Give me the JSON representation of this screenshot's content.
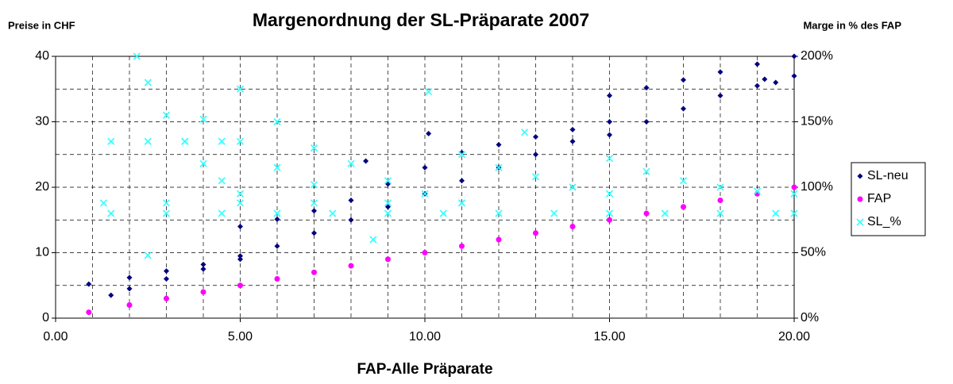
{
  "chart_data": {
    "type": "scatter",
    "title": "Margenordnung der SL-Präparate 2007",
    "y_label": "Preise in CHF",
    "y2_label": "Marge in % des FAP",
    "x_label": "FAP-Alle Präparate",
    "xlim": [
      0,
      20
    ],
    "xticks": [
      {
        "value": 0,
        "label": "0.00"
      },
      {
        "value": 5,
        "label": "5.00"
      },
      {
        "value": 10,
        "label": "10.00"
      },
      {
        "value": 15,
        "label": "15.00"
      },
      {
        "value": 20,
        "label": "20.00"
      }
    ],
    "ylim": [
      0,
      40
    ],
    "yticks": [
      0,
      10,
      20,
      30,
      40
    ],
    "y2lim": [
      0,
      200
    ],
    "y2ticks": [
      {
        "value": 0,
        "label": "0%"
      },
      {
        "value": 50,
        "label": "50%"
      },
      {
        "value": 100,
        "label": "100%"
      },
      {
        "value": 150,
        "label": "150%"
      },
      {
        "value": 200,
        "label": "200%"
      }
    ],
    "xgrid": [
      1,
      2,
      3,
      4,
      5,
      6,
      7,
      8,
      9,
      10,
      11,
      12,
      13,
      14,
      15,
      16,
      17,
      18,
      19
    ],
    "ygrid": [
      5,
      10,
      15,
      20,
      25,
      30,
      35
    ],
    "grid": true,
    "legend": "right",
    "series": [
      {
        "name": "SL-neu",
        "color": "#000080",
        "marker": "diamond",
        "x": [
          0.9,
          2,
          3,
          4,
          5,
          5,
          6,
          7,
          8,
          9,
          10,
          11,
          12,
          13,
          14,
          15,
          15,
          16,
          17,
          18,
          19,
          20,
          1.5,
          2,
          3,
          4,
          5,
          6,
          7,
          8,
          9,
          10,
          11,
          12,
          13,
          14,
          15,
          16,
          17,
          18,
          19,
          19.5,
          20,
          10.1,
          8.4,
          19.2
        ],
        "values": [
          5.2,
          6.2,
          7.2,
          8.2,
          9.5,
          14,
          15.1,
          16.4,
          18,
          20.5,
          23,
          25.3,
          26.5,
          27.7,
          28.8,
          30,
          34,
          35.2,
          36.4,
          37.6,
          38.8,
          40,
          3.5,
          4.5,
          6,
          7.5,
          9,
          11,
          13,
          15,
          17,
          19,
          21,
          23,
          25,
          27,
          28,
          30,
          32,
          34,
          35.5,
          36,
          37,
          28.2,
          24,
          36.5
        ]
      },
      {
        "name": "FAP",
        "color": "#ff00ff",
        "marker": "circle",
        "x": [
          0.9,
          2,
          3,
          4,
          5,
          6,
          7,
          8,
          9,
          10,
          11,
          12,
          13,
          14,
          15,
          16,
          17,
          18,
          19,
          20
        ],
        "values": [
          0.9,
          2,
          3,
          4,
          5,
          6,
          7,
          8,
          9,
          10,
          11,
          12,
          13,
          14,
          15,
          16,
          17,
          18,
          19,
          20
        ]
      },
      {
        "name": "SL_%",
        "color": "#33ffff",
        "marker": "x",
        "axis": "y2",
        "x": [
          2.2,
          2.5,
          3,
          3.5,
          4,
          4.5,
          5,
          5,
          6,
          7,
          8,
          9,
          10,
          11,
          1.5,
          2.5,
          3.5,
          4.5,
          5,
          6,
          7,
          11,
          12,
          13,
          14,
          15,
          15,
          16,
          17,
          18,
          19,
          20,
          1.3,
          3,
          5,
          7,
          9,
          11,
          1.5,
          3,
          4.5,
          6,
          7.5,
          9,
          10.5,
          12,
          13.5,
          15,
          16.5,
          18,
          19.5,
          20,
          10.1,
          4,
          2.5,
          8.6,
          12.7
        ],
        "values": [
          200,
          180,
          155,
          135,
          118,
          105,
          95,
          175,
          150,
          130,
          118,
          105,
          95,
          88,
          135,
          135,
          135,
          135,
          135,
          115,
          102,
          125,
          115,
          108,
          100,
          95,
          122,
          112,
          105,
          100,
          97,
          95,
          88,
          88,
          88,
          88,
          88,
          88,
          80,
          80,
          80,
          80,
          80,
          80,
          80,
          80,
          80,
          80,
          80,
          80,
          80,
          80,
          173,
          152,
          48,
          60,
          142
        ]
      }
    ]
  }
}
